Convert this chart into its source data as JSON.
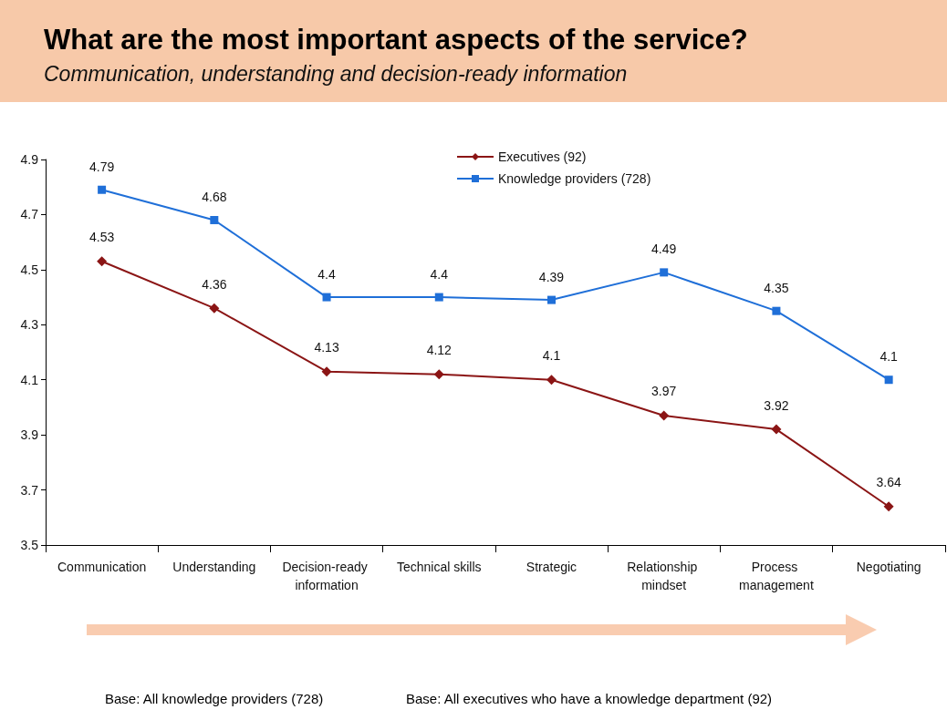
{
  "chart_data": {
    "type": "line",
    "title": "What are the most important aspects of the service?",
    "subtitle": "Communication, understanding and decision-ready information",
    "categories": [
      "Communication",
      "Understanding",
      "Decision-ready information",
      "Technical skills",
      "Strategic",
      "Relationship mindset",
      "Process management",
      "Negotiating"
    ],
    "series": [
      {
        "name": "Executives (92)",
        "color": "#8b1515",
        "marker": "diamond",
        "values": [
          4.53,
          4.36,
          4.13,
          4.12,
          4.1,
          3.97,
          3.92,
          3.64
        ]
      },
      {
        "name": "Knowledge providers (728)",
        "color": "#1f6fd8",
        "marker": "square",
        "values": [
          4.79,
          4.68,
          4.4,
          4.4,
          4.39,
          4.49,
          4.35,
          4.1
        ]
      }
    ],
    "ylim": [
      3.5,
      4.9
    ],
    "yticks": [
      3.5,
      3.7,
      3.9,
      4.1,
      4.3,
      4.5,
      4.7,
      4.9
    ],
    "grid": false,
    "legend": "top right",
    "data_labels": true,
    "line_style": "solid",
    "annotations": [
      "Base: All knowledge providers (728)",
      "Base: All executives who have a knowledge department (92)"
    ]
  }
}
